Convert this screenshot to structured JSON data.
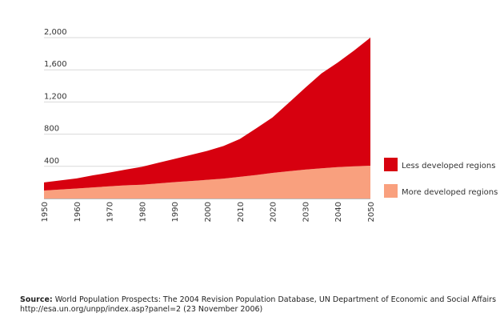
{
  "chart_data": {
    "type": "area",
    "stacked": true,
    "x": [
      1950,
      1955,
      1960,
      1965,
      1970,
      1975,
      1980,
      1985,
      1990,
      1995,
      2000,
      2005,
      2010,
      2015,
      2020,
      2025,
      2030,
      2035,
      2040,
      2045,
      2050
    ],
    "xticks": [
      "1950",
      "1960",
      "1970",
      "1980",
      "1990",
      "2000",
      "2010",
      "2020",
      "2030",
      "2040",
      "2050"
    ],
    "yticks": [
      "400",
      "800",
      "1,200",
      "1,600",
      "2,000"
    ],
    "ylim": [
      0,
      2000
    ],
    "grid": true,
    "legend_position": "right",
    "series": [
      {
        "name": "More developed regions",
        "color": "#f9a07e",
        "values": [
          100,
          112,
          124,
          138,
          152,
          164,
          172,
          188,
          204,
          218,
          232,
          248,
          270,
          292,
          318,
          340,
          360,
          375,
          390,
          400,
          408
        ]
      },
      {
        "name": "Less developed regions",
        "color": "#d7000f",
        "values": [
          100,
          113,
          126,
          150,
          170,
          196,
          222,
          256,
          288,
          324,
          360,
          405,
          470,
          580,
          690,
          850,
          1015,
          1180,
          1300,
          1440,
          1592
        ]
      }
    ]
  },
  "source": {
    "label": "Source:",
    "text": " World Population Prospects: The 2004 Revision Population Database, UN Department of Economic and Social Affairs",
    "url_line": "http://esa.un.org/unpp/index.asp?panel=2 (23 November 2006)"
  }
}
